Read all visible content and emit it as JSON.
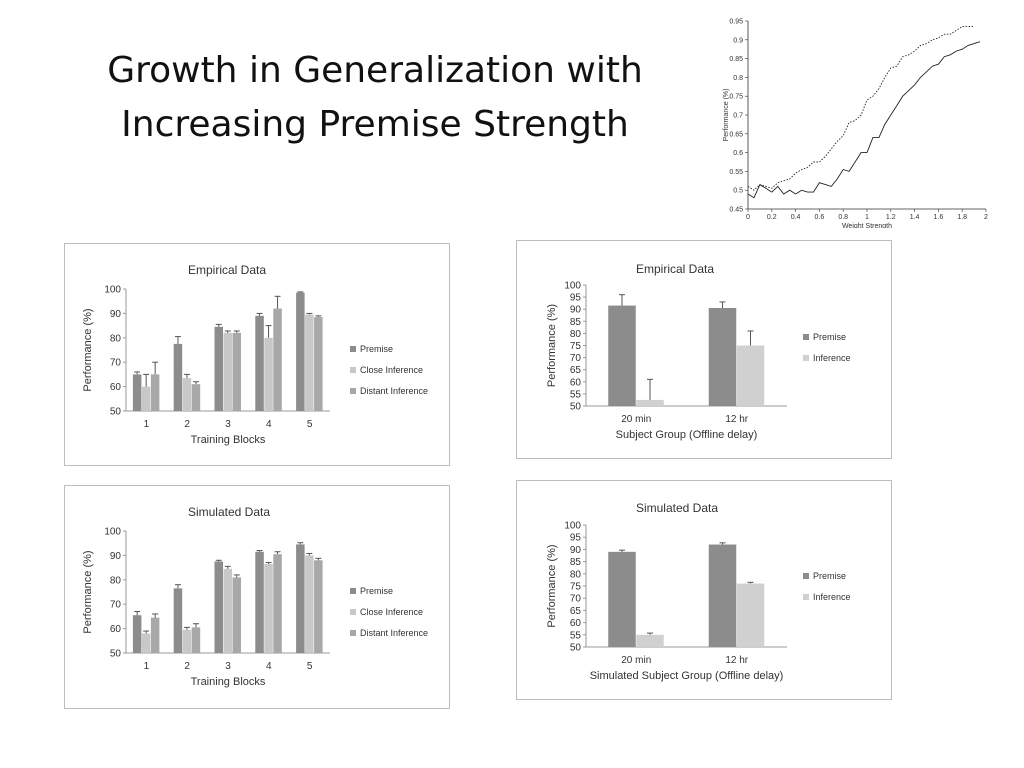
{
  "slide": {
    "title_line1": "Growth in Generalization with",
    "title_line2": "Increasing Premise Strength"
  },
  "chart_data": [
    {
      "type": "line",
      "title": "",
      "xlabel": "Weight Strength",
      "ylabel": "Performance (%)",
      "xlim": [
        0,
        2
      ],
      "ylim": [
        0.45,
        0.95
      ],
      "xticks": [
        "0",
        "0.2",
        "0.4",
        "0.6",
        "0.8",
        "1",
        "1.2",
        "1.4",
        "1.6",
        "1.8",
        "2"
      ],
      "yticks": [
        "0.45",
        "0.5",
        "0.55",
        "0.6",
        "0.65",
        "0.7",
        "0.75",
        "0.8",
        "0.85",
        "0.9",
        "0.95"
      ],
      "grid": false,
      "series": [
        {
          "style": "dotted",
          "x": [
            0,
            0.05,
            0.1,
            0.15,
            0.2,
            0.25,
            0.3,
            0.35,
            0.4,
            0.45,
            0.5,
            0.55,
            0.6,
            0.65,
            0.7,
            0.75,
            0.8,
            0.85,
            0.9,
            0.95,
            1.0,
            1.05,
            1.1,
            1.15,
            1.2,
            1.25,
            1.3,
            1.35,
            1.4,
            1.45,
            1.5,
            1.55,
            1.6,
            1.65,
            1.7,
            1.75,
            1.8,
            1.85,
            1.9
          ],
          "values": [
            0.51,
            0.5,
            0.515,
            0.51,
            0.505,
            0.52,
            0.525,
            0.53,
            0.545,
            0.555,
            0.56,
            0.575,
            0.575,
            0.59,
            0.61,
            0.63,
            0.645,
            0.68,
            0.685,
            0.7,
            0.74,
            0.75,
            0.77,
            0.8,
            0.825,
            0.83,
            0.855,
            0.86,
            0.87,
            0.885,
            0.89,
            0.9,
            0.905,
            0.915,
            0.915,
            0.925,
            0.935,
            0.935,
            0.935
          ]
        },
        {
          "style": "solid",
          "x": [
            0,
            0.05,
            0.1,
            0.15,
            0.2,
            0.25,
            0.3,
            0.35,
            0.4,
            0.45,
            0.5,
            0.55,
            0.6,
            0.65,
            0.7,
            0.75,
            0.8,
            0.85,
            0.9,
            0.95,
            1.0,
            1.05,
            1.1,
            1.15,
            1.2,
            1.25,
            1.3,
            1.35,
            1.4,
            1.45,
            1.5,
            1.55,
            1.6,
            1.65,
            1.7,
            1.75,
            1.8,
            1.85,
            1.9,
            1.95
          ],
          "values": [
            0.49,
            0.48,
            0.515,
            0.505,
            0.495,
            0.51,
            0.49,
            0.5,
            0.49,
            0.5,
            0.495,
            0.495,
            0.52,
            0.515,
            0.51,
            0.53,
            0.555,
            0.55,
            0.575,
            0.6,
            0.6,
            0.64,
            0.64,
            0.675,
            0.7,
            0.725,
            0.75,
            0.765,
            0.78,
            0.8,
            0.815,
            0.83,
            0.835,
            0.855,
            0.86,
            0.87,
            0.875,
            0.885,
            0.89,
            0.895
          ]
        }
      ]
    },
    {
      "type": "bar",
      "title": "Empirical Data",
      "xlabel": "Training Blocks",
      "ylabel": "Performance (%)",
      "ylim": [
        50,
        100
      ],
      "yticks": [
        "50",
        "60",
        "70",
        "80",
        "90",
        "100"
      ],
      "categories": [
        "1",
        "2",
        "3",
        "4",
        "5"
      ],
      "legend_placement": "right",
      "series": [
        {
          "name": "Premise",
          "color": "#8c8c8c",
          "values": [
            65,
            77.5,
            84.5,
            89,
            98.5
          ],
          "errors": [
            1,
            3,
            1,
            1,
            0.3
          ]
        },
        {
          "name": "Close Inference",
          "color": "#c8c8c8",
          "values": [
            60,
            63.5,
            82,
            80,
            89.5
          ],
          "errors": [
            5,
            1.5,
            0.8,
            5,
            0.5
          ]
        },
        {
          "name": "Distant Inference",
          "color": "#a8a8a8",
          "values": [
            65,
            61,
            82,
            92,
            88.5
          ],
          "errors": [
            5,
            1,
            0.8,
            5,
            0.5
          ]
        }
      ]
    },
    {
      "type": "bar",
      "title": "Empirical Data",
      "xlabel": "Subject Group (Offline delay)",
      "ylabel": "Performance (%)",
      "ylim": [
        50,
        100
      ],
      "yticks": [
        "50",
        "55",
        "60",
        "65",
        "70",
        "75",
        "80",
        "85",
        "90",
        "95",
        "100"
      ],
      "categories": [
        "20 min",
        "12 hr"
      ],
      "legend_placement": "right",
      "series": [
        {
          "name": "Premise",
          "color": "#8c8c8c",
          "values": [
            91.5,
            90.5
          ],
          "errors": [
            4.5,
            2.5
          ]
        },
        {
          "name": "Inference",
          "color": "#d0d0d0",
          "values": [
            52.5,
            75
          ],
          "errors": [
            8.5,
            6
          ]
        }
      ]
    },
    {
      "type": "bar",
      "title": "Simulated Data",
      "xlabel": "Training Blocks",
      "ylabel": "Performance (%)",
      "ylim": [
        50,
        100
      ],
      "yticks": [
        "50",
        "60",
        "70",
        "80",
        "90",
        "100"
      ],
      "categories": [
        "1",
        "2",
        "3",
        "4",
        "5"
      ],
      "legend_placement": "right",
      "series": [
        {
          "name": "Premise",
          "color": "#8c8c8c",
          "values": [
            65.5,
            76.5,
            87.5,
            91.5,
            94.5
          ],
          "errors": [
            1.5,
            1.5,
            0.5,
            0.5,
            0.7
          ]
        },
        {
          "name": "Close Inference",
          "color": "#c8c8c8",
          "values": [
            58,
            59.5,
            84.5,
            86.5,
            90
          ],
          "errors": [
            1,
            1,
            1,
            0.6,
            0.8
          ]
        },
        {
          "name": "Distant Inference",
          "color": "#a8a8a8",
          "values": [
            64.5,
            60.5,
            81,
            90.5,
            88
          ],
          "errors": [
            1.5,
            1.5,
            1,
            1,
            0.8
          ]
        }
      ]
    },
    {
      "type": "bar",
      "title": "Simulated Data",
      "xlabel": "Simulated Subject Group (Offline delay)",
      "ylabel": "Performance (%)",
      "ylim": [
        50,
        100
      ],
      "yticks": [
        "50",
        "55",
        "60",
        "65",
        "70",
        "75",
        "80",
        "85",
        "90",
        "95",
        "100"
      ],
      "categories": [
        "20 min",
        "12 hr"
      ],
      "legend_placement": "right",
      "series": [
        {
          "name": "Premise",
          "color": "#8c8c8c",
          "values": [
            89,
            92
          ],
          "errors": [
            0.7,
            0.7
          ]
        },
        {
          "name": "Inference",
          "color": "#d0d0d0",
          "values": [
            55,
            76
          ],
          "errors": [
            0.7,
            0.5
          ]
        }
      ]
    }
  ]
}
